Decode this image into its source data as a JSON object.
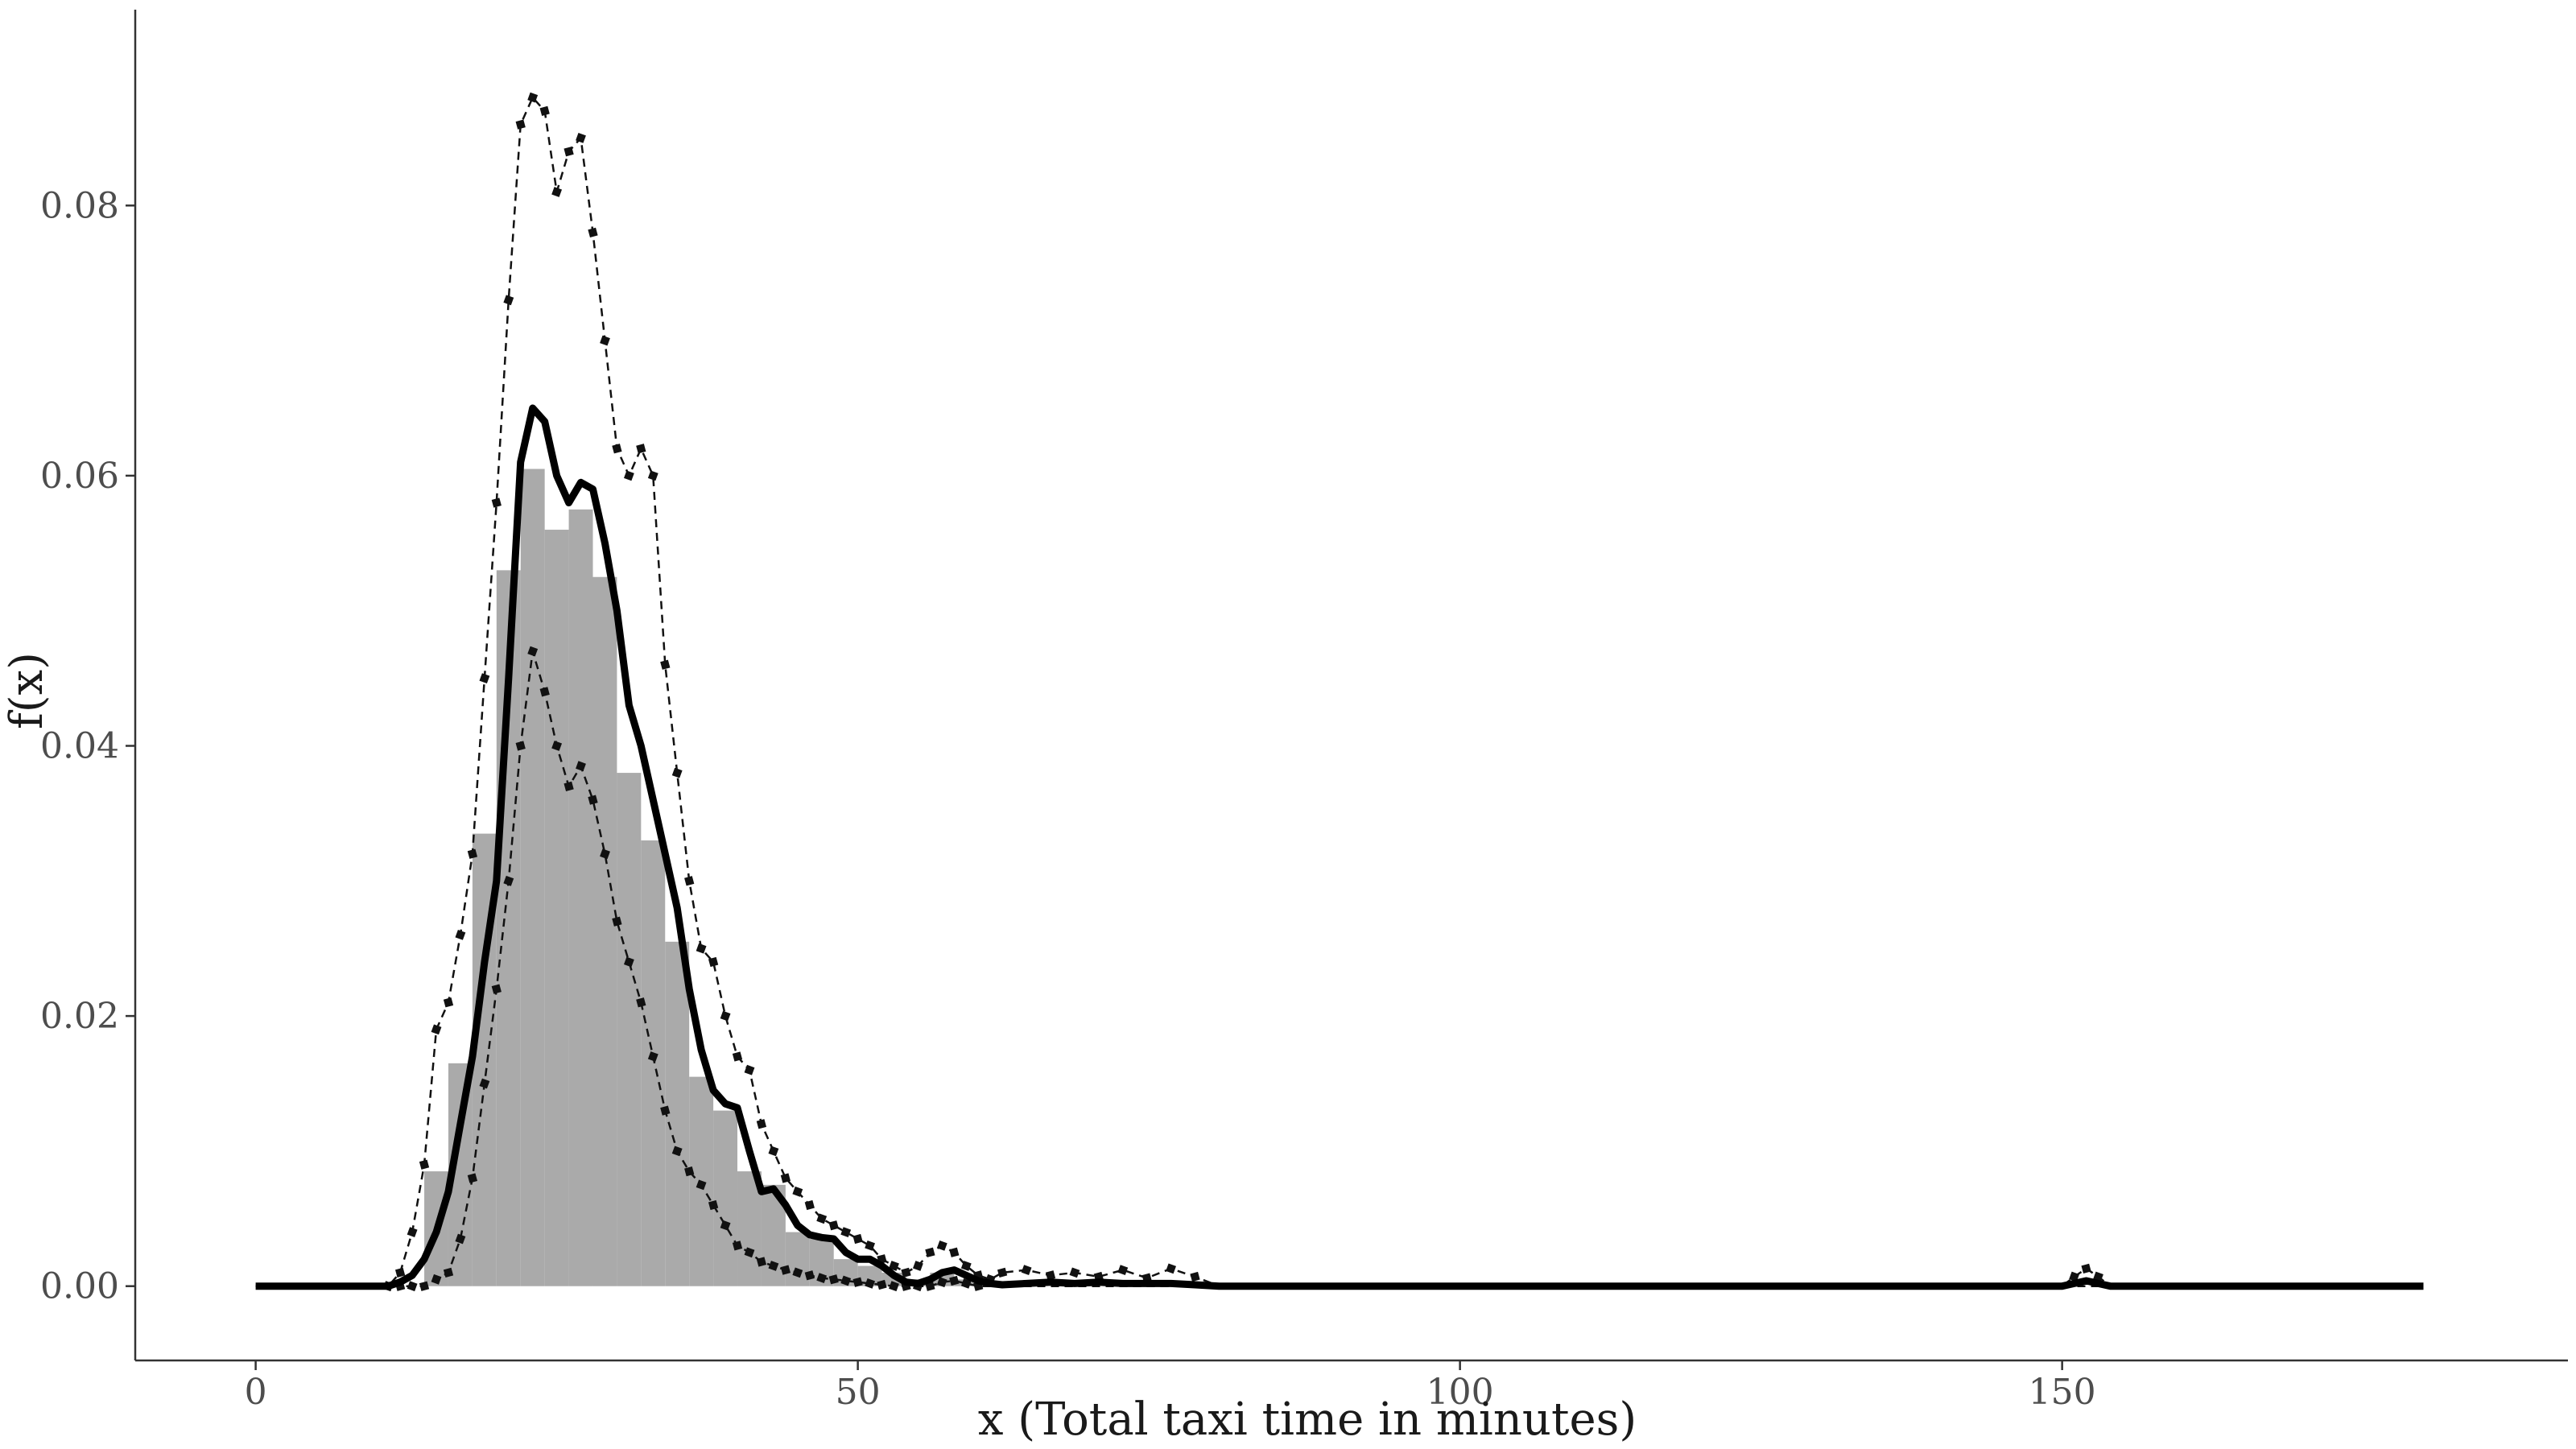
{
  "chart_data": {
    "type": "area",
    "title": "",
    "xlabel": "x (Total taxi time in minutes)",
    "ylabel": "f(x)",
    "xlim": [
      -10,
      192
    ],
    "ylim": [
      -0.0055,
      0.0945
    ],
    "x_ticks": [
      0,
      50,
      100,
      150
    ],
    "x_tick_labels": [
      "0",
      "50",
      "100",
      "150"
    ],
    "y_ticks": [
      0,
      0.02,
      0.04,
      0.06,
      0.08
    ],
    "y_tick_labels": [
      "0.00",
      "0.02",
      "0.04",
      "0.06",
      "0.08"
    ],
    "grid": false,
    "legend": "none",
    "colors": {
      "histogram": "#aaaaaa",
      "density": "#000000",
      "bands": "#111111"
    },
    "histogram": {
      "bin_width": 2,
      "bins": [
        {
          "x0": 14,
          "x1": 16,
          "value": 0.0085
        },
        {
          "x0": 16,
          "x1": 18,
          "value": 0.0165
        },
        {
          "x0": 18,
          "x1": 20,
          "value": 0.0335
        },
        {
          "x0": 20,
          "x1": 22,
          "value": 0.053
        },
        {
          "x0": 22,
          "x1": 24,
          "value": 0.0605
        },
        {
          "x0": 24,
          "x1": 26,
          "value": 0.056
        },
        {
          "x0": 26,
          "x1": 28,
          "value": 0.0575
        },
        {
          "x0": 28,
          "x1": 30,
          "value": 0.0525
        },
        {
          "x0": 30,
          "x1": 32,
          "value": 0.038
        },
        {
          "x0": 32,
          "x1": 34,
          "value": 0.033
        },
        {
          "x0": 34,
          "x1": 36,
          "value": 0.0255
        },
        {
          "x0": 36,
          "x1": 38,
          "value": 0.0155
        },
        {
          "x0": 38,
          "x1": 40,
          "value": 0.013
        },
        {
          "x0": 40,
          "x1": 42,
          "value": 0.0085
        },
        {
          "x0": 42,
          "x1": 44,
          "value": 0.0075
        },
        {
          "x0": 44,
          "x1": 46,
          "value": 0.004
        },
        {
          "x0": 46,
          "x1": 48,
          "value": 0.0035
        },
        {
          "x0": 48,
          "x1": 50,
          "value": 0.002
        },
        {
          "x0": 50,
          "x1": 52,
          "value": 0.0015
        },
        {
          "x0": 52,
          "x1": 54,
          "value": 0.001
        },
        {
          "x0": 54,
          "x1": 56,
          "value": 0.0005
        },
        {
          "x0": 56,
          "x1": 58,
          "value": 0.001
        },
        {
          "x0": 58,
          "x1": 60,
          "value": 0.0005
        }
      ]
    },
    "series": [
      {
        "role": "density estimate",
        "style": "solid-thick",
        "x": [
          0,
          11,
          12,
          13,
          14,
          15,
          16,
          17,
          18,
          19,
          20,
          21,
          22,
          23,
          24,
          25,
          26,
          27,
          28,
          29,
          30,
          31,
          32,
          33,
          34,
          35,
          36,
          37,
          38,
          39,
          40,
          41,
          42,
          43,
          44,
          45,
          46,
          47,
          48,
          49,
          50,
          51,
          52,
          53,
          54,
          55,
          56,
          57,
          58,
          59,
          60,
          61,
          62,
          64,
          66,
          68,
          70,
          72,
          74,
          76,
          78,
          80,
          150,
          151,
          152,
          153,
          154,
          180
        ],
        "y": [
          0,
          0,
          0.0003,
          0.0008,
          0.002,
          0.004,
          0.007,
          0.012,
          0.017,
          0.024,
          0.03,
          0.045,
          0.061,
          0.065,
          0.064,
          0.06,
          0.058,
          0.0595,
          0.059,
          0.055,
          0.05,
          0.043,
          0.04,
          0.036,
          0.032,
          0.028,
          0.022,
          0.0175,
          0.0145,
          0.0135,
          0.0132,
          0.01,
          0.007,
          0.0072,
          0.006,
          0.0045,
          0.0038,
          0.0036,
          0.0035,
          0.0025,
          0.002,
          0.002,
          0.0015,
          0.0008,
          0.0003,
          0.0002,
          0.0005,
          0.001,
          0.0012,
          0.0008,
          0.0004,
          0.0002,
          0.0001,
          0.0002,
          0.0003,
          0.0002,
          0.0003,
          0.0002,
          0.0002,
          0.0002,
          0.0001,
          0,
          0,
          0.0002,
          0.0004,
          0.0002,
          0,
          0
        ]
      },
      {
        "role": "upper band",
        "style": "dashed-with-markers",
        "x": [
          0,
          11,
          12,
          13,
          14,
          15,
          16,
          17,
          18,
          19,
          20,
          21,
          22,
          23,
          24,
          25,
          26,
          27,
          28,
          29,
          30,
          31,
          32,
          33,
          34,
          35,
          36,
          37,
          38,
          39,
          40,
          41,
          42,
          43,
          44,
          45,
          46,
          47,
          48,
          49,
          50,
          51,
          52,
          53,
          54,
          55,
          56,
          57,
          58,
          59,
          60,
          61,
          62,
          64,
          66,
          68,
          70,
          72,
          74,
          76,
          78,
          80,
          150,
          151,
          152,
          153,
          154,
          180
        ],
        "y": [
          0,
          0,
          0.001,
          0.004,
          0.009,
          0.019,
          0.021,
          0.026,
          0.032,
          0.045,
          0.058,
          0.073,
          0.086,
          0.088,
          0.087,
          0.081,
          0.084,
          0.085,
          0.078,
          0.07,
          0.062,
          0.06,
          0.062,
          0.06,
          0.046,
          0.038,
          0.03,
          0.025,
          0.024,
          0.02,
          0.017,
          0.016,
          0.012,
          0.01,
          0.008,
          0.007,
          0.006,
          0.005,
          0.0045,
          0.004,
          0.0035,
          0.003,
          0.002,
          0.0015,
          0.001,
          0.0015,
          0.0025,
          0.003,
          0.0025,
          0.0015,
          0.0008,
          0.0005,
          0.001,
          0.0012,
          0.0008,
          0.001,
          0.0007,
          0.0012,
          0.0006,
          0.0013,
          0.0007,
          0,
          0,
          0.0007,
          0.0013,
          0.0007,
          0,
          0
        ]
      },
      {
        "role": "lower band",
        "style": "dashed-with-markers",
        "x": [
          0,
          11,
          12,
          13,
          14,
          15,
          16,
          17,
          18,
          19,
          20,
          21,
          22,
          23,
          24,
          25,
          26,
          27,
          28,
          29,
          30,
          31,
          32,
          33,
          34,
          35,
          36,
          37,
          38,
          39,
          40,
          41,
          42,
          43,
          44,
          45,
          46,
          47,
          48,
          49,
          50,
          51,
          52,
          53,
          54,
          55,
          56,
          57,
          58,
          59,
          60,
          61,
          62,
          64,
          66,
          68,
          70,
          72,
          74,
          76,
          78,
          80,
          150,
          151,
          152,
          153,
          154,
          180
        ],
        "y": [
          0,
          0,
          0,
          0,
          0,
          0.0005,
          0.001,
          0.0035,
          0.008,
          0.015,
          0.022,
          0.03,
          0.04,
          0.047,
          0.044,
          0.04,
          0.037,
          0.0385,
          0.036,
          0.032,
          0.027,
          0.024,
          0.021,
          0.017,
          0.013,
          0.01,
          0.0085,
          0.0075,
          0.006,
          0.0045,
          0.003,
          0.0025,
          0.0018,
          0.0015,
          0.0012,
          0.001,
          0.0008,
          0.0006,
          0.0005,
          0.0004,
          0.0003,
          0.0002,
          0.0001,
          0,
          0,
          0,
          0,
          0.0003,
          0.0004,
          0.0002,
          0,
          0,
          0,
          0,
          0,
          0,
          0,
          0,
          0,
          0,
          0,
          0,
          0,
          0,
          0,
          0,
          0,
          0
        ]
      }
    ]
  }
}
